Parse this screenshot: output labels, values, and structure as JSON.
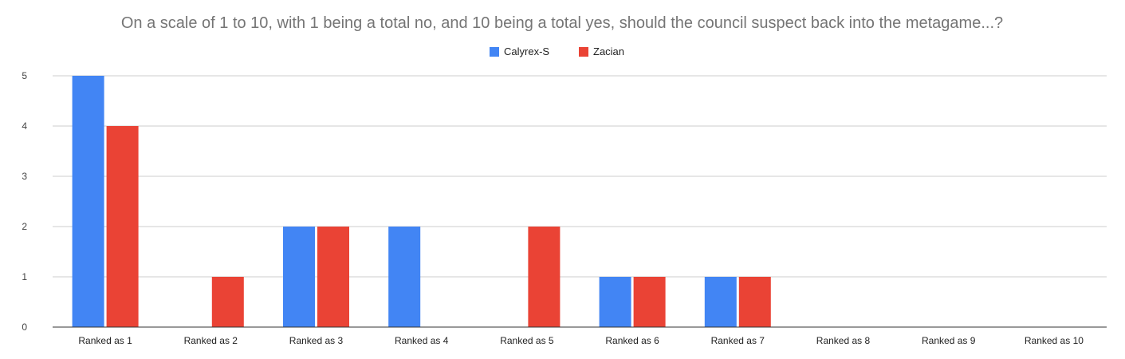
{
  "chart_data": {
    "type": "bar",
    "title": "On a scale of 1 to 10, with 1 being a total no, and 10 being a total yes, should the council suspect back into the metagame...?",
    "categories": [
      "Ranked as 1",
      "Ranked as 2",
      "Ranked as 3",
      "Ranked as 4",
      "Ranked as 5",
      "Ranked as 6",
      "Ranked as 7",
      "Ranked as 8",
      "Ranked as 9",
      "Ranked as 10"
    ],
    "series": [
      {
        "name": "Calyrex-S",
        "color": "#4285f4",
        "values": [
          5,
          0,
          2,
          2,
          0,
          1,
          1,
          0,
          0,
          0
        ]
      },
      {
        "name": "Zacian",
        "color": "#ea4335",
        "values": [
          4,
          1,
          2,
          0,
          2,
          1,
          1,
          0,
          0,
          0
        ]
      }
    ],
    "yticks": [
      0,
      1,
      2,
      3,
      4,
      5
    ],
    "ylim": [
      0,
      5
    ],
    "grid": true,
    "legend_position": "top-center"
  }
}
